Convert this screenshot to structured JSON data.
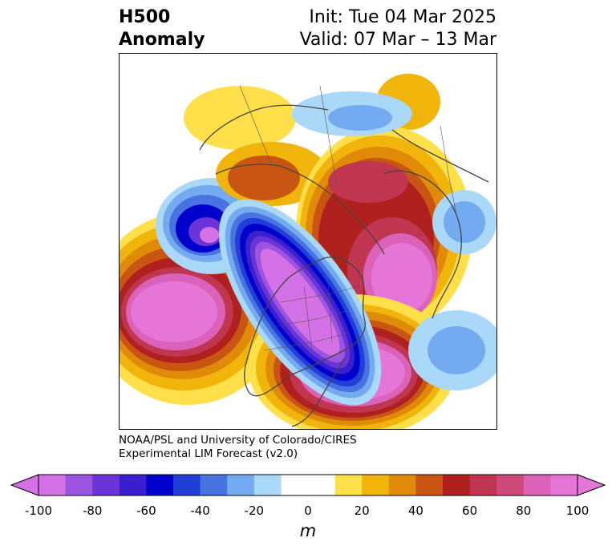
{
  "title": {
    "left_line1": "H500",
    "left_line2": "Anomaly",
    "init": "Init: Tue 04 Mar 2025",
    "valid": "Valid: 07 Mar – 13 Mar"
  },
  "credit": {
    "line1": "NOAA/PSL and University of Colorado/CIRES",
    "line2": "Experimental LIM Forecast (v2.0)"
  },
  "colorbar": {
    "ticks": [
      "-100",
      "-80",
      "-60",
      "-40",
      "-20",
      "0",
      "20",
      "40",
      "60",
      "80",
      "100"
    ],
    "unit": "m",
    "colors": [
      "#d571e6",
      "#9d55e0",
      "#6a34d8",
      "#3a1fcf",
      "#0000cc",
      "#1f3fd8",
      "#4a73e2",
      "#74aaf0",
      "#aad8f8",
      "#ffffff",
      "#ffff",
      "#ffdf4a",
      "#f0b40a",
      "#e08a0a",
      "#c85512",
      "#b0201e",
      "#c03550",
      "#ce4a7a",
      "#da62b8",
      "#e675d8"
    ],
    "extend": "both"
  },
  "map": {
    "projection": "polar stereographic, Northern Hemisphere",
    "field": "500 hPa geopotential height anomaly",
    "features": [
      "positive anomaly over eastern North Pacific",
      "negative anomaly over central North America",
      "positive anomaly over eastern North America and North Atlantic",
      "positive anomaly over North Atlantic near Greenland",
      "negative anomaly west of Alaska/Bering Sea"
    ]
  }
}
